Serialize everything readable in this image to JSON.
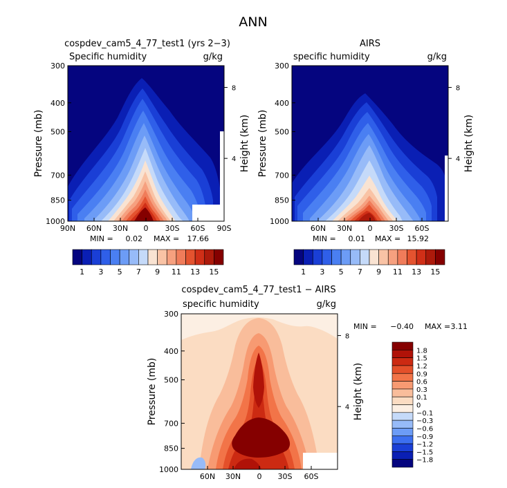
{
  "figure": {
    "title": "ANN"
  },
  "chart_data": [
    {
      "type": "contour",
      "panel": "model",
      "title": "cospdev_cam5_4_77_test1 (yrs 2−3)",
      "variable": "Specific humidity",
      "units": "g/kg",
      "ylabel": "Pressure (mb)",
      "ylabel_right": "Height (km)",
      "x_ticks": [
        "90N",
        "60N",
        "30N",
        "0",
        "30S",
        "60S",
        "90S"
      ],
      "y_ticks": [
        "300",
        "400",
        "500",
        "700",
        "850",
        "1000"
      ],
      "y_right_ticks": [
        "8",
        "4"
      ],
      "min_label": "MIN =",
      "min": "0.02",
      "max_label": "MAX =",
      "max": "17.66",
      "colorbar_labels": [
        "1",
        "3",
        "5",
        "7",
        "9",
        "11",
        "13",
        "15"
      ],
      "colorbar_colors": [
        "#05057f",
        "#0a1fb4",
        "#1a3fd6",
        "#2f5fe9",
        "#4a7ff2",
        "#6c9cf6",
        "#97bbf8",
        "#c5daf9",
        "#f9e3d2",
        "#f9c3a5",
        "#f6a07f",
        "#f07c5a",
        "#e4532f",
        "#d02f17",
        "#ad1a0b",
        "#850000"
      ]
    },
    {
      "type": "contour",
      "panel": "obs",
      "title": "AIRS",
      "variable": "specific humidity",
      "units": "g/kg",
      "ylabel": "Pressure (mb)",
      "ylabel_right": "Height (km)",
      "x_ticks": [
        "60N",
        "30N",
        "0",
        "30S",
        "60S"
      ],
      "y_ticks": [
        "300",
        "400",
        "500",
        "700",
        "850",
        "1000"
      ],
      "y_right_ticks": [
        "8",
        "4"
      ],
      "min_label": "MIN =",
      "min": "0.01",
      "max_label": "MAX =",
      "max": "15.92",
      "colorbar_labels": [
        "1",
        "3",
        "5",
        "7",
        "9",
        "11",
        "13",
        "15"
      ],
      "colorbar_colors": [
        "#05057f",
        "#0a1fb4",
        "#1a3fd6",
        "#2f5fe9",
        "#4a7ff2",
        "#6c9cf6",
        "#97bbf8",
        "#c5daf9",
        "#f9e3d2",
        "#f9c3a5",
        "#f6a07f",
        "#f07c5a",
        "#e4532f",
        "#d02f17",
        "#ad1a0b",
        "#850000"
      ]
    },
    {
      "type": "contour",
      "panel": "difference",
      "title": "cospdev_cam5_4_77_test1 − AIRS",
      "variable": "specific humidity",
      "units": "g/kg",
      "ylabel": "Pressure (mb)",
      "ylabel_right": "Height (km)",
      "x_ticks": [
        "60N",
        "30N",
        "0",
        "30S",
        "60S"
      ],
      "y_ticks": [
        "300",
        "400",
        "500",
        "700",
        "850",
        "1000"
      ],
      "y_right_ticks": [
        "8",
        "4"
      ],
      "min_label": "MIN =",
      "min": "−0.40",
      "max_label": "MAX =",
      "max": "3.11",
      "colorbar_labels": [
        "1.8",
        "1.5",
        "1.2",
        "0.9",
        "0.6",
        "0.3",
        "0.1",
        "0",
        "−0.1",
        "−0.3",
        "−0.6",
        "−0.9",
        "−1.2",
        "−1.5",
        "−1.8"
      ],
      "colorbar_colors": [
        "#850000",
        "#b01208",
        "#cc2a12",
        "#e4502a",
        "#f27448",
        "#f79a72",
        "#f9bd9b",
        "#fbdcc2",
        "#fcefe3",
        "#c5daf9",
        "#97bbf8",
        "#6c9cf6",
        "#3c6ff0",
        "#1a3fd6",
        "#0a1fb4",
        "#05057f"
      ]
    }
  ]
}
